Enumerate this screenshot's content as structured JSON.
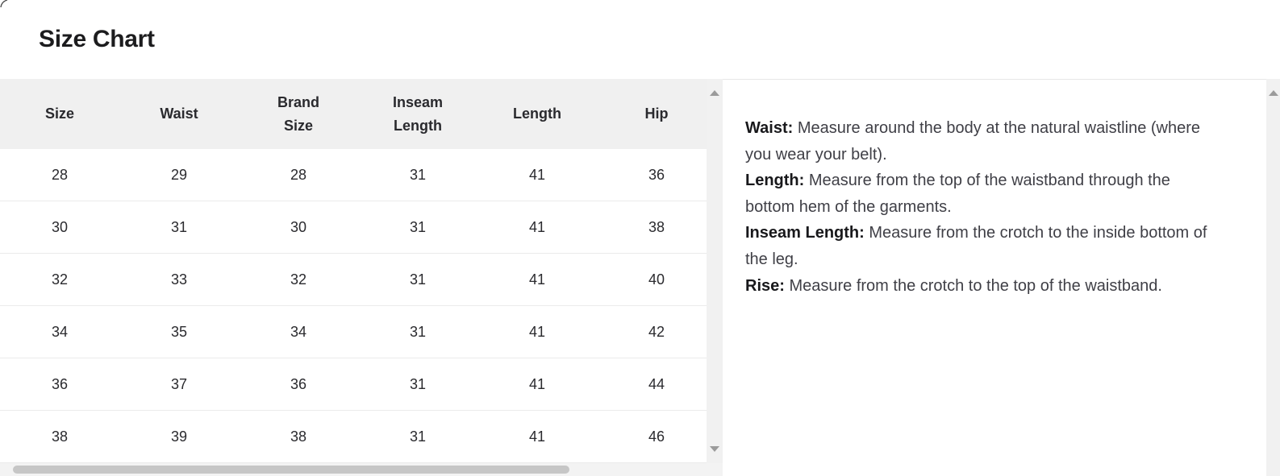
{
  "title": "Size Chart",
  "table": {
    "columns": [
      "Size",
      "Waist",
      "Brand Size",
      "Inseam Length",
      "Length",
      "Hip"
    ],
    "rows": [
      [
        "28",
        "29",
        "28",
        "31",
        "41",
        "36"
      ],
      [
        "30",
        "31",
        "30",
        "31",
        "41",
        "38"
      ],
      [
        "32",
        "33",
        "32",
        "31",
        "41",
        "40"
      ],
      [
        "34",
        "35",
        "34",
        "31",
        "41",
        "42"
      ],
      [
        "36",
        "37",
        "36",
        "31",
        "41",
        "44"
      ],
      [
        "38",
        "39",
        "38",
        "31",
        "41",
        "46"
      ]
    ]
  },
  "right_panel": {
    "separator": ": ",
    "items": [
      {
        "label": "Waist",
        "text": "Measure around the body at the natural waistline (where you wear your belt)."
      },
      {
        "label": "Length",
        "text": "Measure from the top of the waistband through the bottom hem of the garments."
      },
      {
        "label": "Inseam Length",
        "text": "Measure from the crotch to the inside bottom of the leg."
      },
      {
        "label": "Rise",
        "text": "Measure from the crotch to the top of the waistband."
      }
    ]
  },
  "icons": {
    "scroll_up": "up-triangle",
    "scroll_down": "down-triangle"
  },
  "colors": {
    "header_bg": "#f0f0f0",
    "row_divider": "#ebebeb",
    "title_text": "#1c1c1e",
    "cell_text": "#2a2a2e",
    "desc_text": "#3f3f46",
    "desc_label": "#18181b",
    "scrollbar_track": "#f1f1f1",
    "scrollbar_thumb": "#c6c6c6",
    "scrollbar_arrow": "#9b9b9b",
    "panel_border": "#e7e7e7"
  }
}
